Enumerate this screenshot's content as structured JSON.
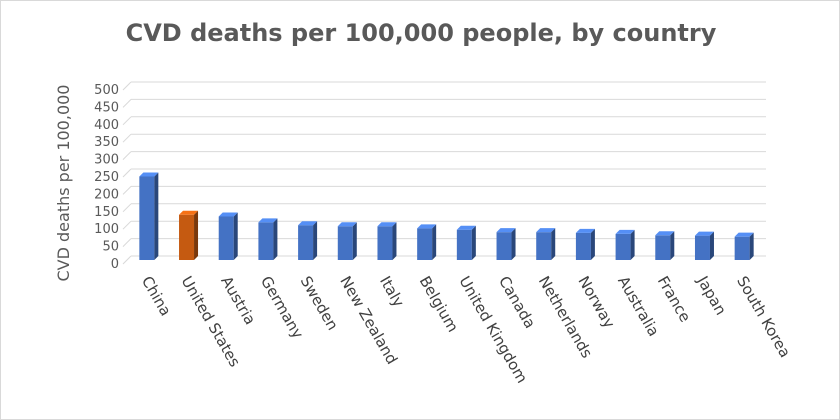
{
  "chart_data": {
    "type": "bar",
    "title": "CVD deaths per 100,000 people, by country",
    "xlabel": "",
    "ylabel": "CVD deaths per 100,000",
    "ylim": [
      0,
      500
    ],
    "yticks": [
      0,
      50,
      100,
      150,
      200,
      250,
      300,
      350,
      400,
      450,
      500
    ],
    "grid": true,
    "legend": "none",
    "categories": [
      "China",
      "United States",
      "Austria",
      "Germany",
      "Sweden",
      "New Zealand",
      "Italy",
      "Belgium",
      "United Kingdom",
      "Canada",
      "Netherlands",
      "Norway",
      "Australia",
      "France",
      "Japan",
      "South Korea"
    ],
    "values": [
      240,
      130,
      125,
      108,
      100,
      97,
      97,
      91,
      87,
      80,
      80,
      78,
      75,
      71,
      70,
      67
    ],
    "colors": {
      "default": "#4472c4",
      "highlight": "#c55a11",
      "highlight_category": "United States"
    }
  }
}
